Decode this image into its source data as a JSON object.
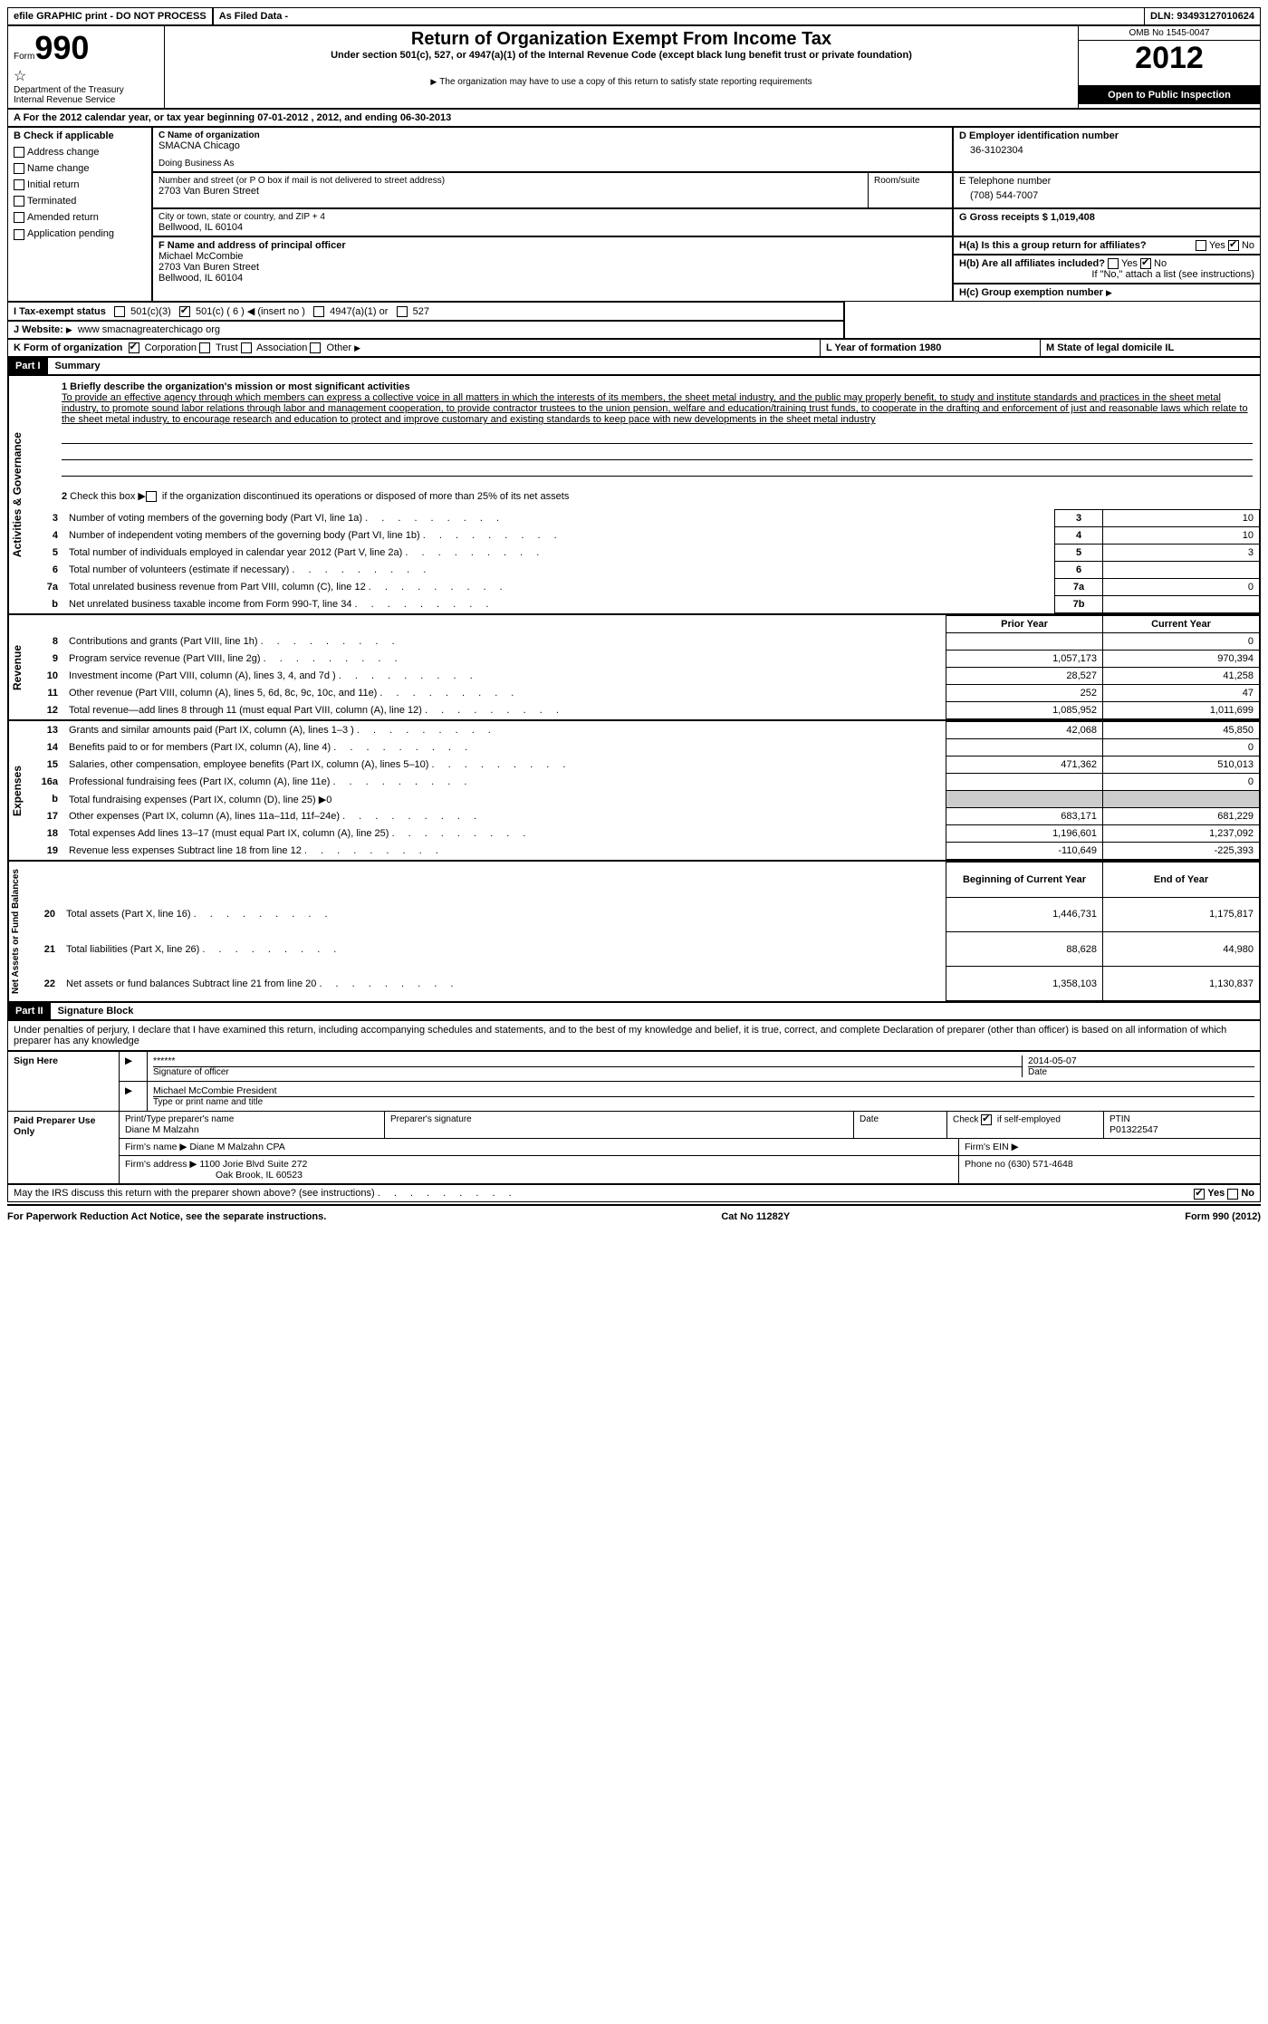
{
  "top": {
    "efile": "efile GRAPHIC print - DO NOT PROCESS",
    "asfiled": "As Filed Data -",
    "dln": "DLN: 93493127010624"
  },
  "header": {
    "form_prefix": "Form",
    "form_number": "990",
    "dept": "Department of the Treasury",
    "irs": "Internal Revenue Service",
    "title": "Return of Organization Exempt From Income Tax",
    "subtitle": "Under section 501(c), 527, or 4947(a)(1) of the Internal Revenue Code (except black lung benefit trust or private foundation)",
    "copy_note": "The organization may have to use a copy of this return to satisfy state reporting requirements",
    "omb": "OMB No 1545-0047",
    "year": "2012",
    "inspection": "Open to Public Inspection"
  },
  "rowA": "A  For the 2012 calendar year, or tax year beginning 07-01-2012    , 2012, and ending 06-30-2013",
  "boxB": {
    "label": "B  Check if applicable",
    "items": [
      "Address change",
      "Name change",
      "Initial return",
      "Terminated",
      "Amended return",
      "Application pending"
    ]
  },
  "boxC": {
    "c_label": "C Name of organization",
    "org": "SMACNA Chicago",
    "dba_label": "Doing Business As",
    "street_label": "Number and street (or P O  box if mail is not delivered to street address)",
    "room_label": "Room/suite",
    "street": "2703 Van Buren Street",
    "city_label": "City or town, state or country, and ZIP + 4",
    "city": "Bellwood, IL  60104",
    "f_label": "F  Name and address of principal officer",
    "f_name": "Michael McCombie",
    "f_street": "2703 Van Buren Street",
    "f_city": "Bellwood, IL  60104"
  },
  "boxD": {
    "d_label": "D Employer identification number",
    "ein": "36-3102304",
    "e_label": "E Telephone number",
    "phone": "(708) 544-7007",
    "g_label": "G Gross receipts $ 1,019,408",
    "ha_label": "H(a)  Is this a group return for affiliates?",
    "hb_label": "H(b)  Are all affiliates included?",
    "hb_note": "If \"No,\" attach a list  (see instructions)",
    "hc_label": "H(c)   Group exemption number"
  },
  "rowI": {
    "label": "I   Tax-exempt status",
    "insert": "(insert no )",
    "opts": [
      "501(c)(3)",
      "501(c) ( 6 )",
      "4947(a)(1) or",
      "527"
    ]
  },
  "rowJ": {
    "label": "J   Website:",
    "url": "www smacnagreaterchicago org"
  },
  "rowK": {
    "label": "K Form of organization",
    "opts": [
      "Corporation",
      "Trust",
      "Association",
      "Other"
    ],
    "l_label": "L Year of formation  1980",
    "m_label": "M State of legal domicile  IL"
  },
  "part1": {
    "title": "Part I",
    "name": "Summary",
    "line1_label": "1   Briefly describe the organization's mission or most significant activities",
    "mission": "To provide an effective agency through which members can express a collective voice in all matters in which the interests of its members, the sheet metal industry, and the public may properly benefit, to study and institute standards and practices in the sheet metal industry, to promote sound labor relations through labor and management cooperation, to provide contractor trustees to the union pension, welfare and education/training trust funds, to cooperate in the drafting and enforcement of just and reasonable laws which relate to the sheet metal industry, to encourage research and education to protect and improve customary and existing standards to keep pace with new developments in the sheet metal industry",
    "line2": "2   Check this box ▶ if the organization discontinued its operations or disposed of more than 25% of its net assets",
    "rows_top": [
      {
        "n": "3",
        "label": "Number of voting members of the governing body (Part VI, line 1a)",
        "box": "3",
        "val": "10"
      },
      {
        "n": "4",
        "label": "Number of independent voting members of the governing body (Part VI, line 1b)",
        "box": "4",
        "val": "10"
      },
      {
        "n": "5",
        "label": "Total number of individuals employed in calendar year 2012 (Part V, line 2a)",
        "box": "5",
        "val": "3"
      },
      {
        "n": "6",
        "label": "Total number of volunteers (estimate if necessary)",
        "box": "6",
        "val": ""
      },
      {
        "n": "7a",
        "label": "Total unrelated business revenue from Part VIII, column (C), line 12",
        "box": "7a",
        "val": "0"
      },
      {
        "n": "b",
        "label": "Net unrelated business taxable income from Form 990-T, line 34",
        "box": "7b",
        "val": ""
      }
    ],
    "col_headers": {
      "prior": "Prior Year",
      "current": "Current Year"
    },
    "revenue": [
      {
        "n": "8",
        "label": "Contributions and grants (Part VIII, line 1h)",
        "prior": "",
        "current": "0"
      },
      {
        "n": "9",
        "label": "Program service revenue (Part VIII, line 2g)",
        "prior": "1,057,173",
        "current": "970,394"
      },
      {
        "n": "10",
        "label": "Investment income (Part VIII, column (A), lines 3, 4, and 7d )",
        "prior": "28,527",
        "current": "41,258"
      },
      {
        "n": "11",
        "label": "Other revenue (Part VIII, column (A), lines 5, 6d, 8c, 9c, 10c, and 11e)",
        "prior": "252",
        "current": "47"
      },
      {
        "n": "12",
        "label": "Total revenue—add lines 8 through 11 (must equal Part VIII, column (A), line 12)",
        "prior": "1,085,952",
        "current": "1,011,699"
      }
    ],
    "expenses": [
      {
        "n": "13",
        "label": "Grants and similar amounts paid (Part IX, column (A), lines 1–3 )",
        "prior": "42,068",
        "current": "45,850"
      },
      {
        "n": "14",
        "label": "Benefits paid to or for members (Part IX, column (A), line 4)",
        "prior": "",
        "current": "0"
      },
      {
        "n": "15",
        "label": "Salaries, other compensation, employee benefits (Part IX, column (A), lines 5–10)",
        "prior": "471,362",
        "current": "510,013"
      },
      {
        "n": "16a",
        "label": "Professional fundraising fees (Part IX, column (A), line 11e)",
        "prior": "",
        "current": "0"
      },
      {
        "n": "b",
        "label": "Total fundraising expenses (Part IX, column (D), line 25) ▶0",
        "prior": "—",
        "current": "—"
      },
      {
        "n": "17",
        "label": "Other expenses (Part IX, column (A), lines 11a–11d, 11f–24e)",
        "prior": "683,171",
        "current": "681,229"
      },
      {
        "n": "18",
        "label": "Total expenses  Add lines 13–17 (must equal Part IX, column (A), line 25)",
        "prior": "1,196,601",
        "current": "1,237,092"
      },
      {
        "n": "19",
        "label": "Revenue less expenses  Subtract line 18 from line 12",
        "prior": "-110,649",
        "current": "-225,393"
      }
    ],
    "net_headers": {
      "prior": "Beginning of Current Year",
      "current": "End of Year"
    },
    "netassets": [
      {
        "n": "20",
        "label": "Total assets (Part X, line 16)",
        "prior": "1,446,731",
        "current": "1,175,817"
      },
      {
        "n": "21",
        "label": "Total liabilities (Part X, line 26)",
        "prior": "88,628",
        "current": "44,980"
      },
      {
        "n": "22",
        "label": "Net assets or fund balances  Subtract line 21 from line 20",
        "prior": "1,358,103",
        "current": "1,130,837"
      }
    ],
    "side_labels": {
      "activities": "Activities & Governance",
      "revenue": "Revenue",
      "expenses": "Expenses",
      "net": "Net Assets or Fund Balances"
    }
  },
  "part2": {
    "title": "Part II",
    "name": "Signature Block",
    "perjury": "Under penalties of perjury, I declare that I have examined this return, including accompanying schedules and statements, and to the best of my knowledge and belief, it is true, correct, and complete  Declaration of preparer (other than officer) is based on all information of which preparer has any knowledge",
    "sign_here": "Sign Here",
    "stars": "******",
    "sig_date": "2014-05-07",
    "sig_of_officer": "Signature of officer",
    "date_label": "Date",
    "officer_name": "Michael McCombie  President",
    "type_label": "Type or print name and title",
    "paid": "Paid Preparer Use Only",
    "prep_name_label": "Print/Type preparer's name",
    "prep_name": "Diane M Malzahn",
    "prep_sig_label": "Preparer's signature",
    "check_self": "Check        if self-employed",
    "ptin_label": "PTIN",
    "ptin": "P01322547",
    "firm_name_label": "Firm's name    ▶ Diane M Malzahn CPA",
    "firm_ein_label": "Firm's EIN ▶",
    "firm_addr_label": "Firm's address ▶ 1100 Jorie Blvd Suite 272",
    "firm_city": "Oak Brook, IL  60523",
    "firm_phone": "Phone no  (630) 571-4648",
    "discuss": "May the IRS discuss this return with the preparer shown above? (see instructions)",
    "yes": "Yes",
    "no": "No"
  },
  "footer": {
    "paperwork": "For Paperwork Reduction Act Notice, see the separate instructions.",
    "cat": "Cat No 11282Y",
    "form": "Form 990 (2012)"
  }
}
